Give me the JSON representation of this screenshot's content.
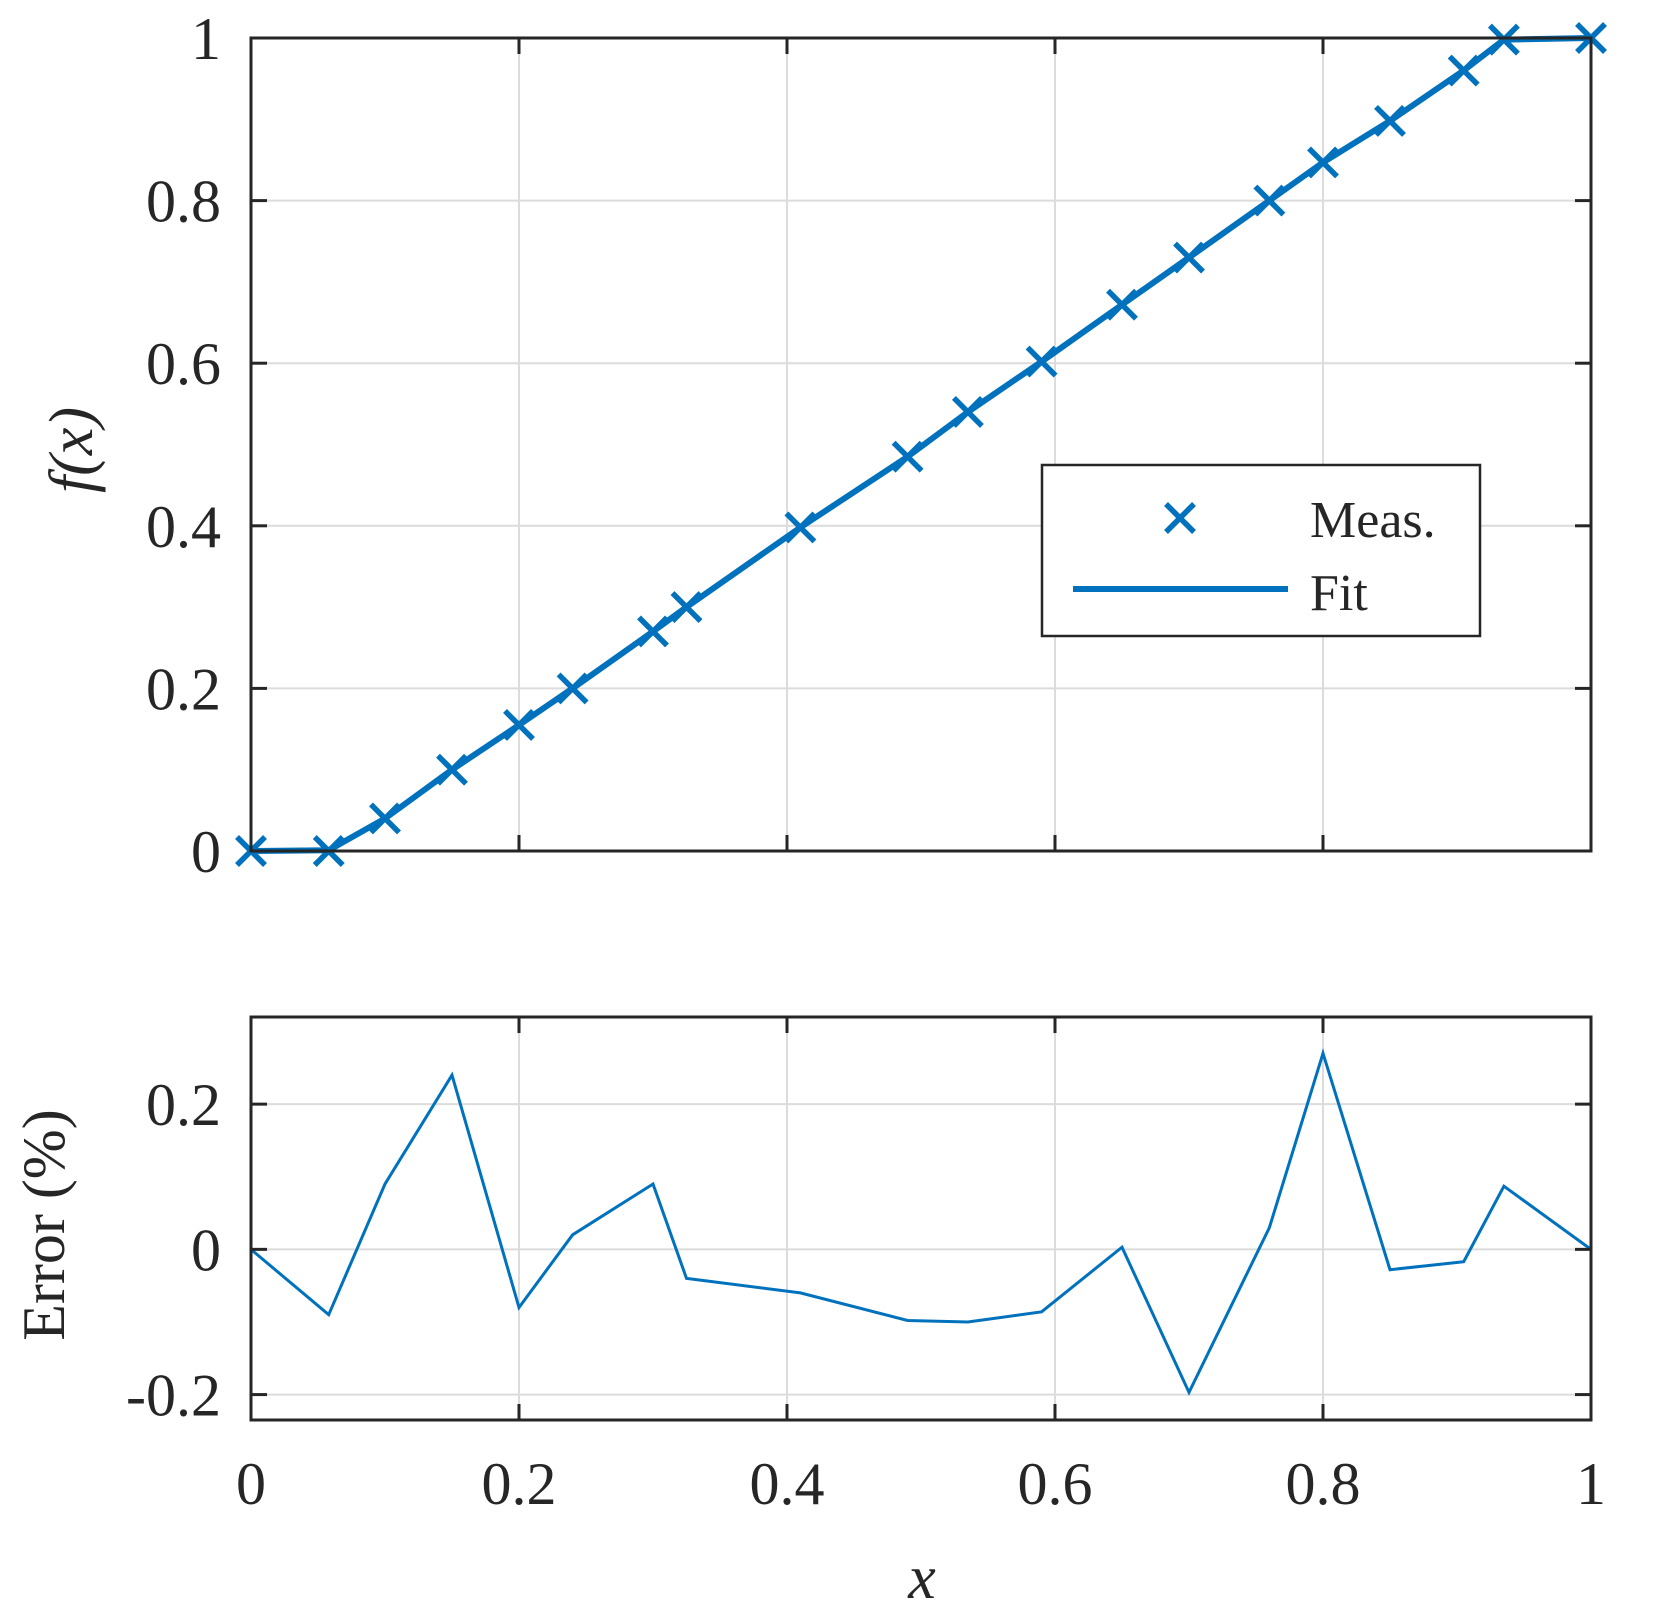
{
  "colors": {
    "series": "#0072BD",
    "axes": "#262626",
    "grid": "#dcdcdc"
  },
  "chart_data": [
    {
      "type": "line",
      "xlabel": "",
      "ylabel": "f(x)",
      "xlim": [
        0,
        1
      ],
      "ylim": [
        0,
        1
      ],
      "xticks": [
        0,
        0.2,
        0.4,
        0.6,
        0.8,
        1
      ],
      "yticks": [
        0,
        0.2,
        0.4,
        0.6,
        0.8,
        1
      ],
      "xtick_labels_shown": false,
      "ytick_labels": [
        "0",
        "0.2",
        "0.4",
        "0.6",
        "0.8",
        "1"
      ],
      "grid": true,
      "legend": {
        "placement": "center-right",
        "entries": [
          "Meas.",
          "Fit"
        ]
      },
      "series": [
        {
          "name": "Meas.",
          "marker": "x",
          "x": [
            0,
            0.058,
            0.1,
            0.15,
            0.2,
            0.24,
            0.3,
            0.325,
            0.41,
            0.49,
            0.535,
            0.59,
            0.65,
            0.7,
            0.76,
            0.8,
            0.85,
            0.905,
            0.935,
            1.0
          ],
          "y": [
            0,
            0,
            0.04,
            0.1,
            0.155,
            0.2,
            0.27,
            0.3,
            0.398,
            0.485,
            0.54,
            0.602,
            0.672,
            0.73,
            0.8,
            0.847,
            0.898,
            0.96,
            0.998,
            1.0
          ]
        },
        {
          "name": "Fit",
          "marker": "none",
          "x": [
            0,
            0.058,
            0.1,
            0.15,
            0.2,
            0.24,
            0.3,
            0.325,
            0.41,
            0.49,
            0.535,
            0.59,
            0.65,
            0.7,
            0.76,
            0.8,
            0.85,
            0.905,
            0.935,
            1.0
          ],
          "y": [
            0,
            0.001,
            0.04,
            0.1,
            0.155,
            0.2,
            0.27,
            0.3,
            0.398,
            0.485,
            0.54,
            0.602,
            0.672,
            0.73,
            0.8,
            0.847,
            0.898,
            0.96,
            0.998,
            1.0
          ]
        }
      ]
    },
    {
      "type": "line",
      "xlabel": "x",
      "ylabel": "Error (%)",
      "xlim": [
        0,
        1
      ],
      "ylim": [
        -0.235,
        0.32
      ],
      "xticks": [
        0,
        0.2,
        0.4,
        0.6,
        0.8,
        1
      ],
      "xtick_labels": [
        "0",
        "0.2",
        "0.4",
        "0.6",
        "0.8",
        "1"
      ],
      "yticks": [
        -0.2,
        0,
        0.2
      ],
      "ytick_labels": [
        "-0.2",
        "0",
        "0.2"
      ],
      "grid": true,
      "series": [
        {
          "marker": "none",
          "x": [
            0,
            0.058,
            0.1,
            0.15,
            0.2,
            0.24,
            0.3,
            0.325,
            0.41,
            0.49,
            0.535,
            0.59,
            0.65,
            0.7,
            0.76,
            0.8,
            0.85,
            0.905,
            0.935,
            1.0
          ],
          "y": [
            0,
            -0.09,
            0.09,
            0.24,
            -0.08,
            0.02,
            0.09,
            -0.04,
            -0.06,
            -0.098,
            -0.1,
            -0.086,
            0.003,
            -0.197,
            0.03,
            0.27,
            -0.028,
            -0.017,
            0.087,
            0.0
          ]
        }
      ]
    }
  ]
}
